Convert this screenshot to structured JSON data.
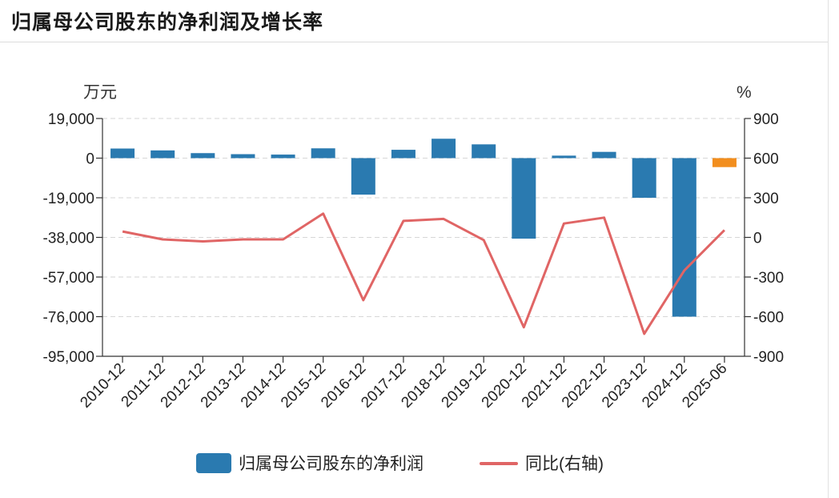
{
  "page": {
    "title": "归属母公司股东的净利润及增长率"
  },
  "chart_data": {
    "type": "bar+line",
    "title": "归属母公司股东的净利润及增长率",
    "left_unit": "万元",
    "right_unit": "%",
    "categories": [
      "2010-12",
      "2011-12",
      "2012-12",
      "2013-12",
      "2014-12",
      "2015-12",
      "2016-12",
      "2017-12",
      "2018-12",
      "2019-12",
      "2020-12",
      "2021-12",
      "2022-12",
      "2023-12",
      "2024-12",
      "2025-06"
    ],
    "left_axis": {
      "ylim": [
        -95000,
        19000
      ],
      "ticks": [
        19000,
        0,
        -19000,
        -38000,
        -57000,
        -76000,
        -95000
      ],
      "tick_labels": [
        "19,000",
        "0",
        "-19,000",
        "-38,000",
        "-57,000",
        "-76,000",
        "-95,000"
      ]
    },
    "right_axis": {
      "ylim": [
        -900,
        900
      ],
      "ticks": [
        900,
        600,
        300,
        0,
        -300,
        -600,
        -900
      ],
      "tick_labels": [
        "900",
        "600",
        "300",
        "0",
        "-300",
        "-600",
        "-900"
      ]
    },
    "series": [
      {
        "name": "归属母公司股东的净利润",
        "type": "bar",
        "axis": "left",
        "color": "#2a7ab0",
        "highlight_color": "#f28e1e",
        "highlight_index": 15,
        "values": [
          4600,
          3700,
          2400,
          1900,
          1700,
          4700,
          -17500,
          4000,
          9300,
          6600,
          -38600,
          1200,
          3000,
          -19000,
          -76000,
          -4300
        ]
      },
      {
        "name": "同比(右轴)",
        "type": "line",
        "axis": "right",
        "color": "#e06565",
        "values": [
          45,
          -15,
          -30,
          -15,
          -15,
          180,
          -475,
          125,
          140,
          -20,
          -680,
          105,
          150,
          -730,
          -250,
          55
        ]
      }
    ],
    "legend": [
      {
        "label": "归属母公司股东的净利润",
        "symbol": "bar",
        "color": "#2a7ab0"
      },
      {
        "label": "同比(右轴)",
        "symbol": "line",
        "color": "#e06565"
      }
    ],
    "grid": true,
    "legend_position": "bottom"
  }
}
